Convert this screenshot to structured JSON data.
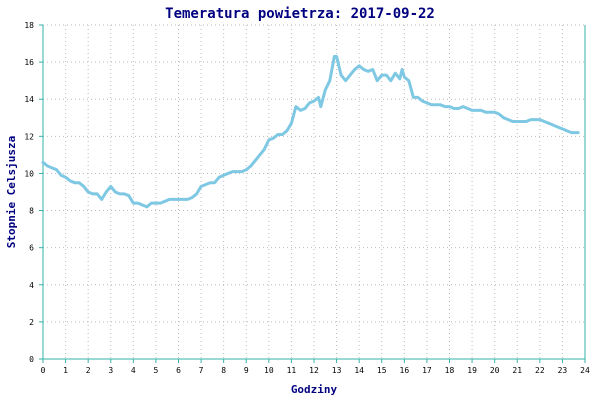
{
  "chart_data": {
    "type": "line",
    "title": "Temeratura powietrza: 2017-09-22",
    "xlabel": "Godziny",
    "ylabel": "Stopnie Celsjusza",
    "xlim": [
      0,
      24
    ],
    "ylim": [
      0,
      18
    ],
    "x_ticks": [
      "0",
      "1",
      "2",
      "3",
      "4",
      "5",
      "6",
      "7",
      "8",
      "9",
      "10",
      "11",
      "12",
      "13",
      "14",
      "15",
      "16",
      "17",
      "18",
      "19",
      "20",
      "21",
      "22",
      "23",
      "24"
    ],
    "y_ticks": [
      "0",
      "2",
      "4",
      "6",
      "8",
      "10",
      "12",
      "14",
      "16",
      "18"
    ],
    "grid": true,
    "colors": {
      "line": "#7ec8e3",
      "axis": "#33b3aa",
      "grid": "#bbbbbb",
      "title": "#000080",
      "text": "#000080"
    },
    "series": [
      {
        "x": [
          0,
          0.2,
          0.4,
          0.6,
          0.8,
          1.0,
          1.2,
          1.4,
          1.6,
          1.8,
          2.0,
          2.2,
          2.4,
          2.6,
          2.8,
          3.0,
          3.2,
          3.4,
          3.6,
          3.8,
          4.0,
          4.2,
          4.4,
          4.6,
          4.8,
          5.0,
          5.2,
          5.4,
          5.6,
          5.8,
          6.0,
          6.2,
          6.4,
          6.6,
          6.8,
          7.0,
          7.2,
          7.4,
          7.6,
          7.8,
          8.0,
          8.2,
          8.4,
          8.6,
          8.8,
          9.0,
          9.2,
          9.4,
          9.6,
          9.8,
          10.0,
          10.2,
          10.4,
          10.6,
          10.8,
          11.0,
          11.2,
          11.4,
          11.6,
          11.8,
          12.0,
          12.2,
          12.3,
          12.5,
          12.7,
          12.9,
          13.0,
          13.1,
          13.2,
          13.4,
          13.6,
          13.8,
          14.0,
          14.2,
          14.4,
          14.6,
          14.8,
          15.0,
          15.2,
          15.4,
          15.6,
          15.8,
          15.9,
          16.0,
          16.2,
          16.4,
          16.6,
          16.8,
          17.0,
          17.2,
          17.4,
          17.6,
          17.8,
          18.0,
          18.2,
          18.4,
          18.6,
          18.8,
          19.0,
          19.2,
          19.4,
          19.6,
          19.8,
          20.0,
          20.2,
          20.4,
          20.6,
          20.8,
          21.0,
          21.2,
          21.4,
          21.6,
          21.8,
          22.0,
          22.2,
          22.4,
          22.6,
          22.8,
          23.0,
          23.2,
          23.4,
          23.6,
          23.7
        ],
        "y": [
          10.6,
          10.4,
          10.3,
          10.2,
          9.9,
          9.8,
          9.6,
          9.5,
          9.5,
          9.3,
          9.0,
          8.9,
          8.9,
          8.6,
          9.0,
          9.3,
          9.0,
          8.9,
          8.9,
          8.8,
          8.4,
          8.4,
          8.3,
          8.2,
          8.4,
          8.4,
          8.4,
          8.5,
          8.6,
          8.6,
          8.6,
          8.6,
          8.6,
          8.7,
          8.9,
          9.3,
          9.4,
          9.5,
          9.5,
          9.8,
          9.9,
          10.0,
          10.1,
          10.1,
          10.1,
          10.2,
          10.4,
          10.7,
          11.0,
          11.3,
          11.8,
          11.9,
          12.1,
          12.1,
          12.3,
          12.7,
          13.6,
          13.4,
          13.5,
          13.8,
          13.9,
          14.1,
          13.6,
          14.5,
          15.0,
          16.3,
          16.3,
          15.8,
          15.3,
          15.0,
          15.3,
          15.6,
          15.8,
          15.6,
          15.5,
          15.6,
          15.0,
          15.3,
          15.3,
          15.0,
          15.4,
          15.1,
          15.6,
          15.2,
          15.0,
          14.1,
          14.1,
          13.9,
          13.8,
          13.7,
          13.7,
          13.7,
          13.6,
          13.6,
          13.5,
          13.5,
          13.6,
          13.5,
          13.4,
          13.4,
          13.4,
          13.3,
          13.3,
          13.3,
          13.2,
          13.0,
          12.9,
          12.8,
          12.8,
          12.8,
          12.8,
          12.9,
          12.9,
          12.9,
          12.8,
          12.7,
          12.6,
          12.5,
          12.4,
          12.3,
          12.2,
          12.2,
          12.2
        ]
      }
    ]
  }
}
